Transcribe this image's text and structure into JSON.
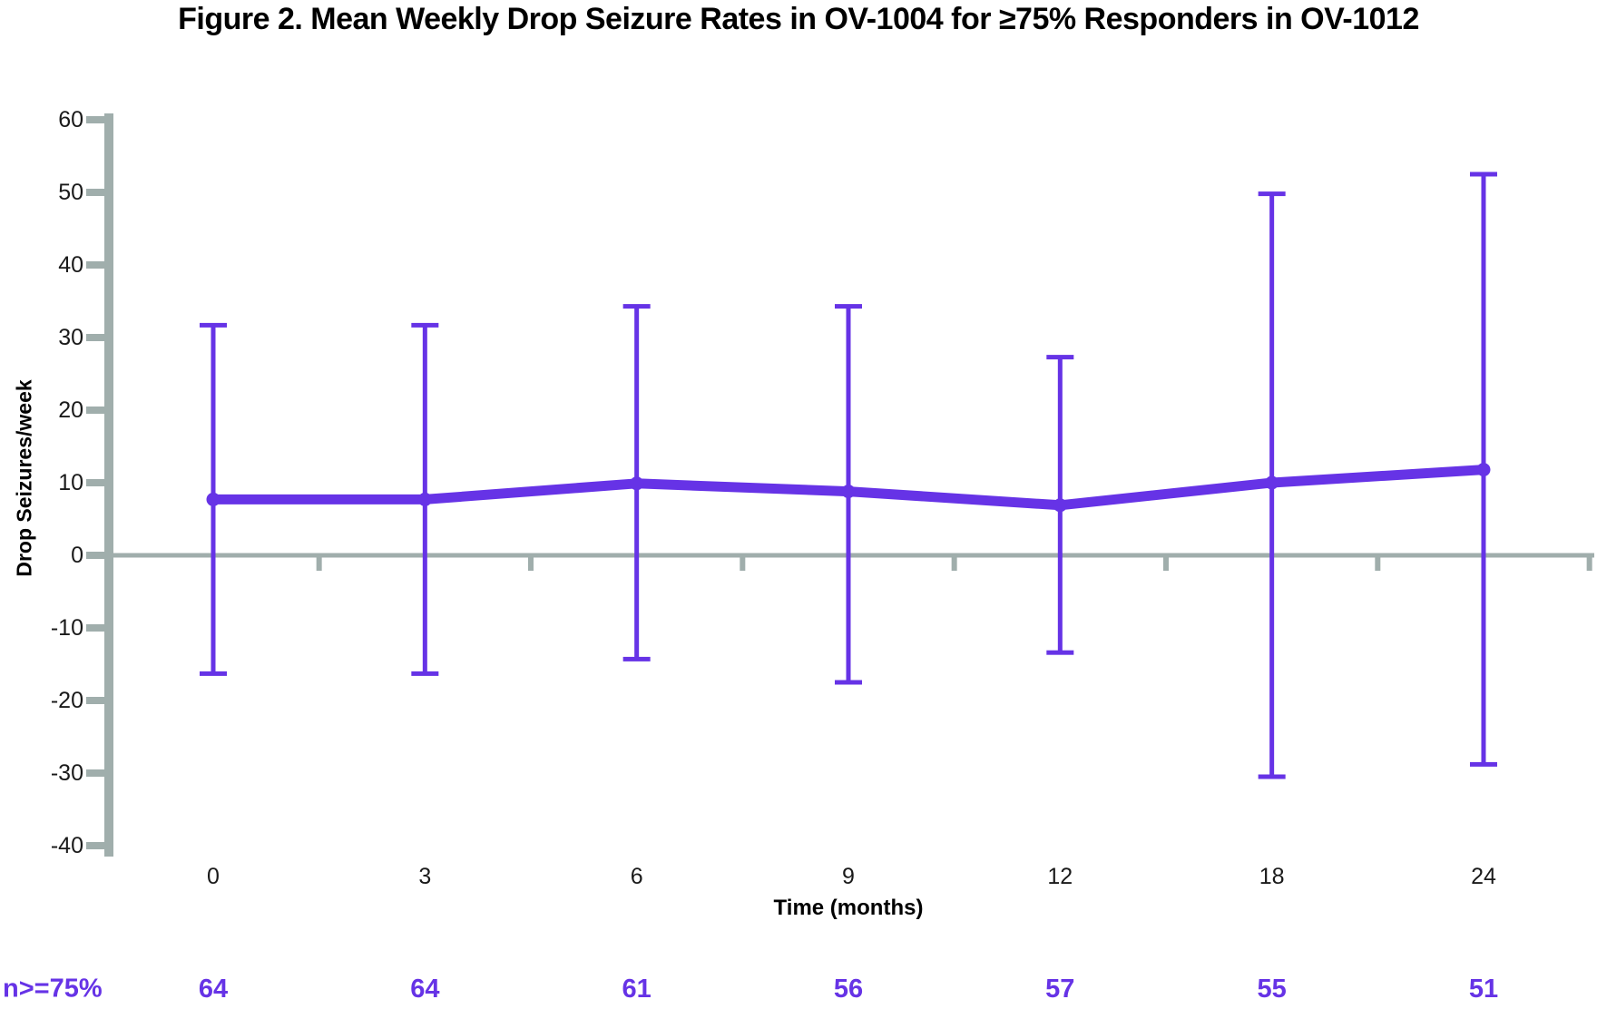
{
  "title": "Figure 2. Mean Weekly Drop Seizure Rates in OV-1004 for ≥75% Responders in OV-1012",
  "colors": {
    "series": "#6633E6",
    "axis": "#A0AEAC",
    "tick_text": "#1A1A1A",
    "title_text": "#000000"
  },
  "chart_data": {
    "type": "line",
    "title": "Figure 2. Mean Weekly Drop Seizure Rates in OV-1004 for ≥75% Responders in OV-1012",
    "xlabel": "Time (months)",
    "ylabel": "Drop Seizures/week",
    "categories": [
      "0",
      "3",
      "6",
      "9",
      "12",
      "18",
      "24"
    ],
    "x_values_months": [
      0,
      3,
      6,
      9,
      12,
      18,
      24
    ],
    "ylim": [
      -40,
      60
    ],
    "yticks": [
      60,
      50,
      40,
      30,
      20,
      10,
      0,
      -10,
      -20,
      -30,
      -40
    ],
    "grid": false,
    "legend": "none",
    "error_bar_style": "whiskers with caps",
    "series": [
      {
        "name": "Mean weekly drop seizure rate",
        "values": [
          7.7,
          7.7,
          9.9,
          8.8,
          6.9,
          10.0,
          11.8
        ],
        "upper_whisker": [
          31.7,
          31.7,
          34.3,
          34.3,
          27.3,
          49.8,
          52.5
        ],
        "lower_whisker": [
          -16.3,
          -16.3,
          -14.3,
          -17.5,
          -13.4,
          -30.5,
          -28.8
        ],
        "color": "#6633E6"
      }
    ],
    "n_row": {
      "label": "n>=75%",
      "values": [
        "64",
        "64",
        "61",
        "56",
        "57",
        "55",
        "51"
      ],
      "color": "#6633E6"
    }
  }
}
